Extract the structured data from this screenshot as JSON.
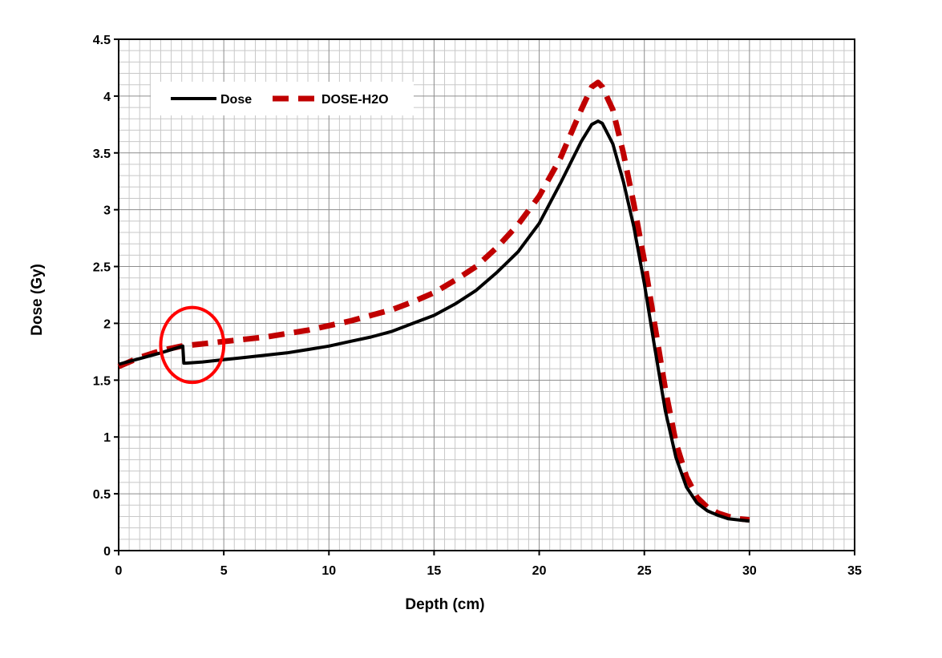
{
  "chart_data": {
    "type": "line",
    "title": "",
    "xlabel": "Depth (cm)",
    "ylabel": "Dose (Gy)",
    "xlim": [
      0,
      35
    ],
    "ylim": [
      0,
      4.5
    ],
    "x_ticks": [
      0,
      5,
      10,
      15,
      20,
      25,
      30,
      35
    ],
    "y_ticks": [
      0,
      0.5,
      1,
      1.5,
      2,
      2.5,
      3,
      3.5,
      4,
      4.5
    ],
    "grid": true,
    "minor_grid": true,
    "legend_position": "top-left",
    "series": [
      {
        "name": "Dose",
        "color": "#000000",
        "style": "solid",
        "x": [
          0,
          1,
          2,
          3.05,
          3.1,
          3.2,
          4,
          5,
          6,
          7,
          8,
          9,
          10,
          11,
          12,
          13,
          14,
          15,
          16,
          17,
          18,
          19,
          20,
          21,
          22,
          22.5,
          22.8,
          23,
          23.5,
          24,
          24.5,
          25,
          25.5,
          26,
          26.5,
          27,
          27.5,
          28,
          28.5,
          29,
          29.5,
          30
        ],
        "y": [
          1.64,
          1.69,
          1.74,
          1.8,
          1.65,
          1.65,
          1.66,
          1.68,
          1.7,
          1.72,
          1.74,
          1.77,
          1.8,
          1.84,
          1.88,
          1.93,
          2.0,
          2.07,
          2.17,
          2.29,
          2.45,
          2.63,
          2.88,
          3.23,
          3.6,
          3.75,
          3.78,
          3.76,
          3.58,
          3.25,
          2.85,
          2.35,
          1.78,
          1.23,
          0.82,
          0.56,
          0.42,
          0.35,
          0.31,
          0.28,
          0.27,
          0.26
        ]
      },
      {
        "name": "DOSE-H2O",
        "color": "#c00000",
        "style": "dashed",
        "x": [
          0,
          1,
          2,
          3,
          4,
          5,
          6,
          7,
          8,
          9,
          10,
          11,
          12,
          13,
          14,
          15,
          16,
          17,
          18,
          19,
          20,
          21,
          22,
          22.5,
          22.8,
          23,
          23.5,
          24,
          24.5,
          25,
          25.5,
          26,
          26.5,
          27,
          27.5,
          28,
          28.5,
          29,
          29.5,
          30
        ],
        "y": [
          1.62,
          1.7,
          1.76,
          1.8,
          1.82,
          1.84,
          1.86,
          1.88,
          1.91,
          1.94,
          1.98,
          2.02,
          2.07,
          2.12,
          2.19,
          2.27,
          2.38,
          2.5,
          2.67,
          2.87,
          3.12,
          3.45,
          3.88,
          4.08,
          4.12,
          4.08,
          3.88,
          3.5,
          3.05,
          2.55,
          1.98,
          1.42,
          0.95,
          0.65,
          0.47,
          0.38,
          0.33,
          0.3,
          0.28,
          0.27
        ]
      }
    ],
    "annotations": [
      {
        "type": "ellipse",
        "color": "#ff0000",
        "x_center": 3.5,
        "y_center": 1.81,
        "x_radius": 1.5,
        "y_radius": 0.33
      }
    ]
  }
}
